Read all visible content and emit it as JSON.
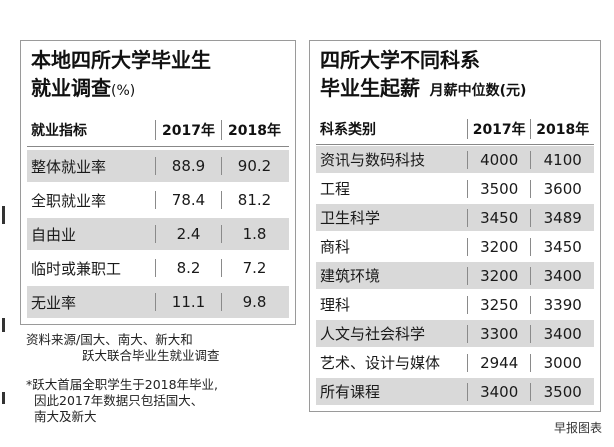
{
  "employment_table": {
    "title": "本地四所大学毕业生",
    "title2": "就业调查",
    "unit": "(%)",
    "headers": [
      "就业指标",
      "2017年",
      "2018年"
    ],
    "rows": [
      {
        "label": "整体就业率",
        "y2017": "88.9",
        "y2018": "90.2"
      },
      {
        "label": "全职就业率",
        "y2017": "78.4",
        "y2018": "81.2"
      },
      {
        "label": "自由业",
        "y2017": "2.4",
        "y2018": "1.8"
      },
      {
        "label": "临时或兼职工",
        "y2017": "8.2",
        "y2018": "7.2"
      },
      {
        "label": "无业率",
        "y2017": "11.1",
        "y2018": "9.8"
      }
    ]
  },
  "salary_table": {
    "title": "四所大学不同科系",
    "title2": "毕业生起薪",
    "unit": "月薪中位数(元)",
    "headers": [
      "科系类别",
      "2017年",
      "2018年"
    ],
    "rows": [
      {
        "label": "资讯与数码科技",
        "y2017": "4000",
        "y2018": "4100"
      },
      {
        "label": "工程",
        "y2017": "3500",
        "y2018": "3600"
      },
      {
        "label": "卫生科学",
        "y2017": "3450",
        "y2018": "3489"
      },
      {
        "label": "商科",
        "y2017": "3200",
        "y2018": "3450"
      },
      {
        "label": "建筑环境",
        "y2017": "3200",
        "y2018": "3400"
      },
      {
        "label": "理科",
        "y2017": "3250",
        "y2018": "3390"
      },
      {
        "label": "人文与社会科学",
        "y2017": "3300",
        "y2018": "3400"
      },
      {
        "label": "艺术、设计与媒体",
        "y2017": "2944",
        "y2018": "3000"
      },
      {
        "label": "所有课程",
        "y2017": "3400",
        "y2018": "3500"
      }
    ]
  },
  "source_note": {
    "line1": "资料来源/国大、南大、新大和",
    "line2": "跃大联合毕业生就业调查"
  },
  "footnote": {
    "line1": "*跃大首届全职学生于2018年毕业,",
    "line2": "因此2017年数据只包括国大、",
    "line3": "南大及新大"
  },
  "credit": "早报图表",
  "colors": {
    "shade": "#d9d9d9",
    "border": "#9a9a9a"
  }
}
